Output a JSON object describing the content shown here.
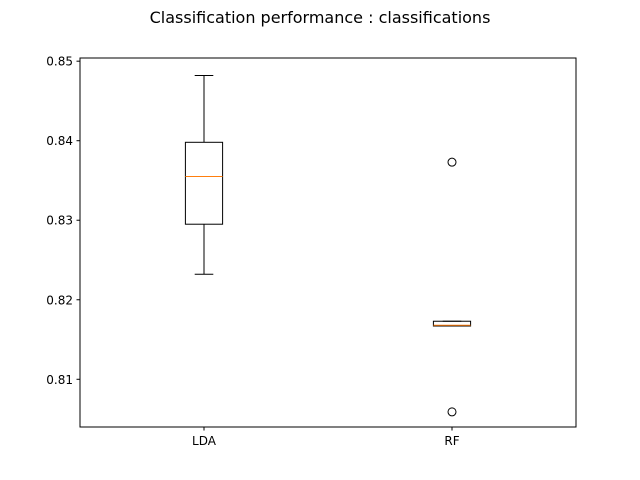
{
  "chart_data": {
    "type": "box",
    "title": "Classification performance : classifications",
    "xlabel": "",
    "ylabel": "",
    "ylim": [
      0.804,
      0.8504
    ],
    "yticks": [
      0.81,
      0.82,
      0.83,
      0.84,
      0.85
    ],
    "ytick_labels": [
      "0.81",
      "0.82",
      "0.83",
      "0.84",
      "0.85"
    ],
    "categories": [
      "LDA",
      "RF"
    ],
    "grid": false,
    "boxes": [
      {
        "label": "LDA",
        "whisker_low": 0.8232,
        "q1": 0.8295,
        "median": 0.8355,
        "q3": 0.8398,
        "whisker_high": 0.8482,
        "fliers": []
      },
      {
        "label": "RF",
        "whisker_low": 0.8167,
        "q1": 0.8167,
        "median": 0.8168,
        "q3": 0.8173,
        "whisker_high": 0.8173,
        "fliers": [
          0.8373,
          0.8059
        ]
      }
    ],
    "colors": {
      "box": "#000000",
      "median": "#ff7f0e",
      "flier": "#000000"
    }
  }
}
